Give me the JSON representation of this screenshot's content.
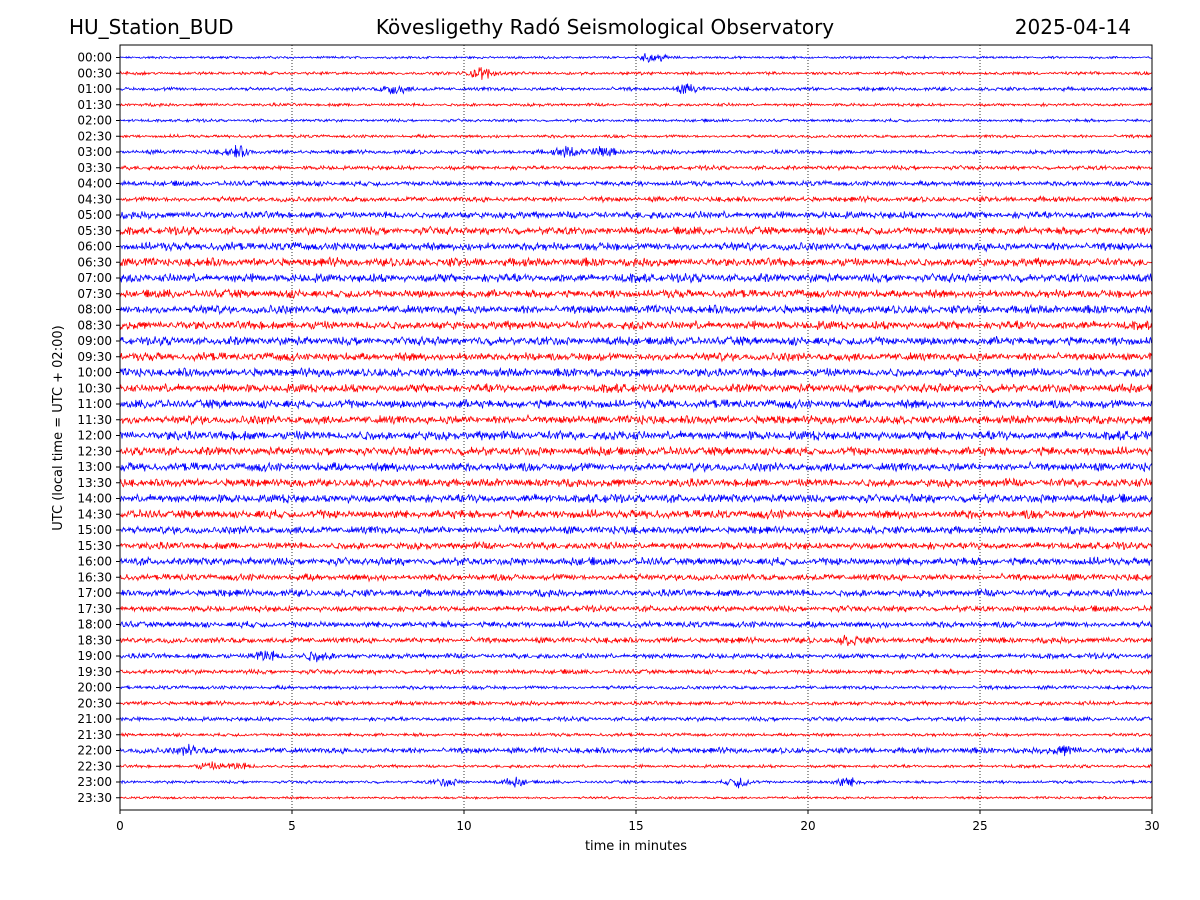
{
  "header": {
    "station": "HU_Station_BUD",
    "observatory": "Kövesligethy Radó Seismological Observatory",
    "date": "2025-04-14"
  },
  "chart_data": {
    "type": "line",
    "title": "Kövesligethy Radó Seismological Observatory",
    "xlabel": "time in minutes",
    "ylabel": "UTC (local time = UTC + 02:00)",
    "xlim": [
      0,
      30
    ],
    "xticks": [
      0,
      5,
      10,
      15,
      20,
      25,
      30
    ],
    "grid": "vertical dotted at x ticks",
    "colors": [
      "#0000ff",
      "#ff0000"
    ],
    "traces": [
      {
        "label": "00:00",
        "color": "#0000ff",
        "amplitude": 0.12,
        "events": [
          [
            15.5,
            0.5
          ]
        ]
      },
      {
        "label": "00:30",
        "color": "#ff0000",
        "amplitude": 0.15,
        "events": [
          [
            10.5,
            0.6
          ]
        ]
      },
      {
        "label": "01:00",
        "color": "#0000ff",
        "amplitude": 0.18,
        "events": [
          [
            8.0,
            0.5
          ],
          [
            16.5,
            0.4
          ]
        ]
      },
      {
        "label": "01:30",
        "color": "#ff0000",
        "amplitude": 0.15,
        "events": []
      },
      {
        "label": "02:00",
        "color": "#0000ff",
        "amplitude": 0.14,
        "events": []
      },
      {
        "label": "02:30",
        "color": "#ff0000",
        "amplitude": 0.15,
        "events": []
      },
      {
        "label": "03:00",
        "color": "#0000ff",
        "amplitude": 0.2,
        "events": [
          [
            3.4,
            0.5
          ],
          [
            13.0,
            0.5
          ],
          [
            14.0,
            0.5
          ]
        ]
      },
      {
        "label": "03:30",
        "color": "#ff0000",
        "amplitude": 0.2,
        "events": []
      },
      {
        "label": "04:00",
        "color": "#0000ff",
        "amplitude": 0.25,
        "events": []
      },
      {
        "label": "04:30",
        "color": "#ff0000",
        "amplitude": 0.25,
        "events": []
      },
      {
        "label": "05:00",
        "color": "#0000ff",
        "amplitude": 0.35,
        "events": []
      },
      {
        "label": "05:30",
        "color": "#ff0000",
        "amplitude": 0.38,
        "events": []
      },
      {
        "label": "06:00",
        "color": "#0000ff",
        "amplitude": 0.4,
        "events": []
      },
      {
        "label": "06:30",
        "color": "#ff0000",
        "amplitude": 0.42,
        "events": []
      },
      {
        "label": "07:00",
        "color": "#0000ff",
        "amplitude": 0.42,
        "events": []
      },
      {
        "label": "07:30",
        "color": "#ff0000",
        "amplitude": 0.4,
        "events": []
      },
      {
        "label": "08:00",
        "color": "#0000ff",
        "amplitude": 0.42,
        "events": []
      },
      {
        "label": "08:30",
        "color": "#ff0000",
        "amplitude": 0.42,
        "events": []
      },
      {
        "label": "09:00",
        "color": "#0000ff",
        "amplitude": 0.42,
        "events": []
      },
      {
        "label": "09:30",
        "color": "#ff0000",
        "amplitude": 0.4,
        "events": []
      },
      {
        "label": "10:00",
        "color": "#0000ff",
        "amplitude": 0.42,
        "events": []
      },
      {
        "label": "10:30",
        "color": "#ff0000",
        "amplitude": 0.42,
        "events": []
      },
      {
        "label": "11:00",
        "color": "#0000ff",
        "amplitude": 0.42,
        "events": []
      },
      {
        "label": "11:30",
        "color": "#ff0000",
        "amplitude": 0.42,
        "events": []
      },
      {
        "label": "12:00",
        "color": "#0000ff",
        "amplitude": 0.45,
        "events": []
      },
      {
        "label": "12:30",
        "color": "#ff0000",
        "amplitude": 0.42,
        "events": []
      },
      {
        "label": "13:00",
        "color": "#0000ff",
        "amplitude": 0.42,
        "events": []
      },
      {
        "label": "13:30",
        "color": "#ff0000",
        "amplitude": 0.4,
        "events": []
      },
      {
        "label": "14:00",
        "color": "#0000ff",
        "amplitude": 0.42,
        "events": []
      },
      {
        "label": "14:30",
        "color": "#ff0000",
        "amplitude": 0.42,
        "events": []
      },
      {
        "label": "15:00",
        "color": "#0000ff",
        "amplitude": 0.38,
        "events": []
      },
      {
        "label": "15:30",
        "color": "#ff0000",
        "amplitude": 0.35,
        "events": []
      },
      {
        "label": "16:00",
        "color": "#0000ff",
        "amplitude": 0.38,
        "events": []
      },
      {
        "label": "16:30",
        "color": "#ff0000",
        "amplitude": 0.32,
        "events": []
      },
      {
        "label": "17:00",
        "color": "#0000ff",
        "amplitude": 0.35,
        "events": []
      },
      {
        "label": "17:30",
        "color": "#ff0000",
        "amplitude": 0.28,
        "events": []
      },
      {
        "label": "18:00",
        "color": "#0000ff",
        "amplitude": 0.3,
        "events": []
      },
      {
        "label": "18:30",
        "color": "#ff0000",
        "amplitude": 0.28,
        "events": [
          [
            21.2,
            0.4
          ]
        ]
      },
      {
        "label": "19:00",
        "color": "#0000ff",
        "amplitude": 0.25,
        "events": [
          [
            4.2,
            0.5
          ],
          [
            5.7,
            0.45
          ]
        ]
      },
      {
        "label": "19:30",
        "color": "#ff0000",
        "amplitude": 0.22,
        "events": []
      },
      {
        "label": "20:00",
        "color": "#0000ff",
        "amplitude": 0.18,
        "events": []
      },
      {
        "label": "20:30",
        "color": "#ff0000",
        "amplitude": 0.2,
        "events": []
      },
      {
        "label": "21:00",
        "color": "#0000ff",
        "amplitude": 0.2,
        "events": []
      },
      {
        "label": "21:30",
        "color": "#ff0000",
        "amplitude": 0.16,
        "events": []
      },
      {
        "label": "22:00",
        "color": "#0000ff",
        "amplitude": 0.28,
        "events": [
          [
            2.0,
            0.4
          ],
          [
            27.5,
            0.4
          ]
        ]
      },
      {
        "label": "22:30",
        "color": "#ff0000",
        "amplitude": 0.15,
        "events": [
          [
            2.6,
            0.35
          ],
          [
            3.4,
            0.35
          ]
        ]
      },
      {
        "label": "23:00",
        "color": "#0000ff",
        "amplitude": 0.14,
        "events": [
          [
            9.5,
            0.4
          ],
          [
            11.5,
            0.4
          ],
          [
            18.0,
            0.5
          ],
          [
            21.1,
            0.5
          ]
        ]
      },
      {
        "label": "23:30",
        "color": "#ff0000",
        "amplitude": 0.12,
        "events": []
      }
    ]
  }
}
